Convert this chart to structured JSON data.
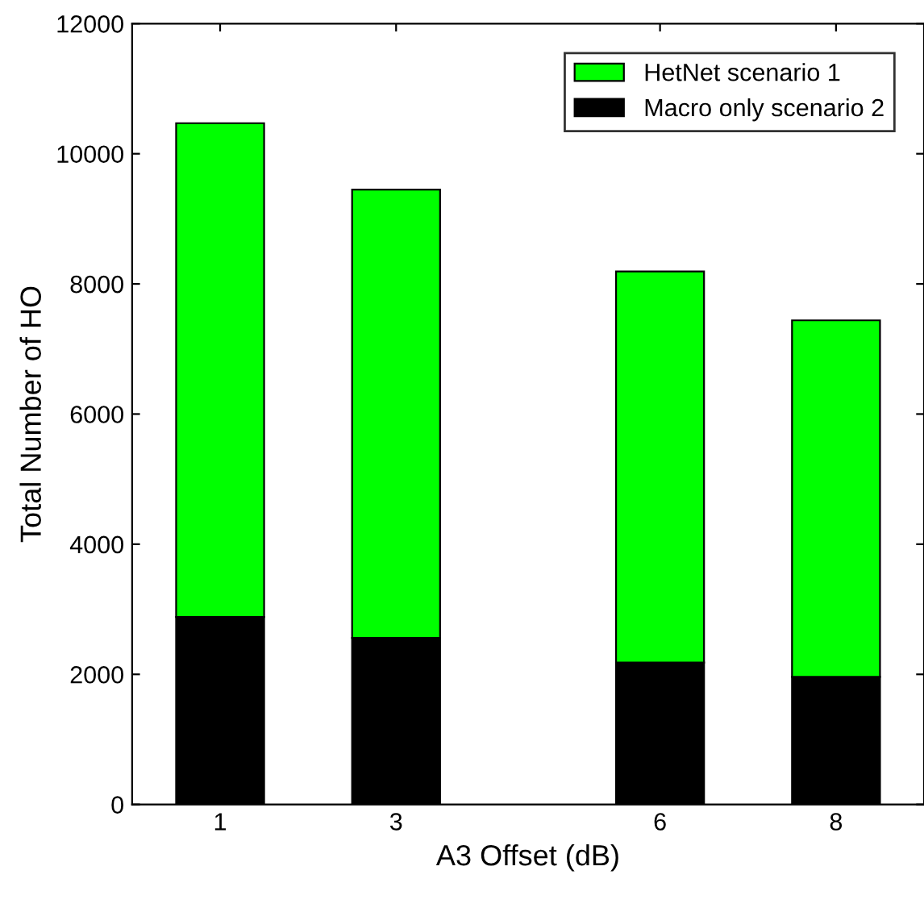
{
  "chart_data": {
    "type": "bar",
    "stacked": true,
    "xlabel": "A3 Offset (dB)",
    "ylabel": "Total Number of HO",
    "x": [
      1,
      3,
      6,
      8
    ],
    "series": [
      {
        "name": "Macro only scenario 2",
        "color": "#000000",
        "values": [
          2880,
          2560,
          2180,
          1960
        ]
      },
      {
        "name": "HetNet scenario 1",
        "color": "#00ff00",
        "values": [
          7590,
          6890,
          6010,
          5480
        ]
      }
    ],
    "xlim": [
      0,
      9
    ],
    "xticks": [
      1,
      3,
      6,
      8
    ],
    "ylim": [
      0,
      12000
    ],
    "yticks": [
      0,
      2000,
      4000,
      6000,
      8000,
      10000,
      12000
    ],
    "legend": "top right"
  }
}
